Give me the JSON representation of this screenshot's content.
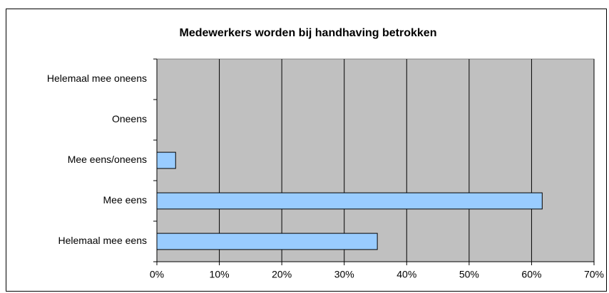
{
  "chart_data": {
    "type": "hbar",
    "title": "Medewerkers worden bij handhaving betrokken",
    "categories": [
      "Helemaal mee oneens",
      "Oneens",
      "Mee eens/oneens",
      "Mee eens",
      "Helemaal mee eens"
    ],
    "values": [
      0,
      0,
      3,
      61.7,
      35.3
    ],
    "color": "#99ccff",
    "xlim": [
      0,
      70
    ],
    "xticks": [
      {
        "value": 0,
        "label": "0%"
      },
      {
        "value": 10,
        "label": "10%"
      },
      {
        "value": 20,
        "label": "20%"
      },
      {
        "value": 30,
        "label": "30%"
      },
      {
        "value": 40,
        "label": "40%"
      },
      {
        "value": 50,
        "label": "50%"
      },
      {
        "value": 60,
        "label": "60%"
      },
      {
        "value": 70,
        "label": "70%"
      }
    ],
    "grid": true
  }
}
